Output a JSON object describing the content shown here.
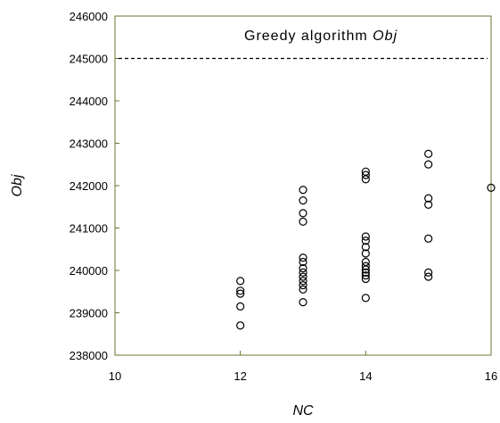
{
  "chart_data": {
    "type": "scatter",
    "title": "",
    "xlabel": "NC",
    "ylabel": "Obj",
    "xlim": [
      10,
      16
    ],
    "ylim": [
      238000,
      246000
    ],
    "x_ticks": [
      "10",
      "12",
      "14",
      "16"
    ],
    "y_ticks": [
      "238000",
      "239000",
      "240000",
      "241000",
      "242000",
      "243000",
      "244000",
      "245000",
      "246000"
    ],
    "grid": false,
    "marker": "open-circle",
    "reference_line": {
      "label_text": "Greedy algorithm ",
      "label_italic": "Obj",
      "y": 245000,
      "style": "dashed"
    },
    "points": [
      {
        "x": 12,
        "y": 238700
      },
      {
        "x": 12,
        "y": 239150
      },
      {
        "x": 12,
        "y": 239450
      },
      {
        "x": 12,
        "y": 239520
      },
      {
        "x": 12,
        "y": 239750
      },
      {
        "x": 13,
        "y": 239250
      },
      {
        "x": 13,
        "y": 239550
      },
      {
        "x": 13,
        "y": 239650
      },
      {
        "x": 13,
        "y": 239750
      },
      {
        "x": 13,
        "y": 239850
      },
      {
        "x": 13,
        "y": 239950
      },
      {
        "x": 13,
        "y": 240050
      },
      {
        "x": 13,
        "y": 240200
      },
      {
        "x": 13,
        "y": 240300
      },
      {
        "x": 13,
        "y": 241150
      },
      {
        "x": 13,
        "y": 241350
      },
      {
        "x": 13,
        "y": 241650
      },
      {
        "x": 13,
        "y": 241900
      },
      {
        "x": 14,
        "y": 239350
      },
      {
        "x": 14,
        "y": 239800
      },
      {
        "x": 14,
        "y": 239880
      },
      {
        "x": 14,
        "y": 239950
      },
      {
        "x": 14,
        "y": 240020
      },
      {
        "x": 14,
        "y": 240100
      },
      {
        "x": 14,
        "y": 240200
      },
      {
        "x": 14,
        "y": 240400
      },
      {
        "x": 14,
        "y": 240550
      },
      {
        "x": 14,
        "y": 240700
      },
      {
        "x": 14,
        "y": 240800
      },
      {
        "x": 14,
        "y": 242150
      },
      {
        "x": 14,
        "y": 242250
      },
      {
        "x": 14,
        "y": 242330
      },
      {
        "x": 15,
        "y": 239850
      },
      {
        "x": 15,
        "y": 239950
      },
      {
        "x": 15,
        "y": 240750
      },
      {
        "x": 15,
        "y": 241550
      },
      {
        "x": 15,
        "y": 241700
      },
      {
        "x": 15,
        "y": 242500
      },
      {
        "x": 15,
        "y": 242750
      },
      {
        "x": 16,
        "y": 241950
      }
    ]
  }
}
